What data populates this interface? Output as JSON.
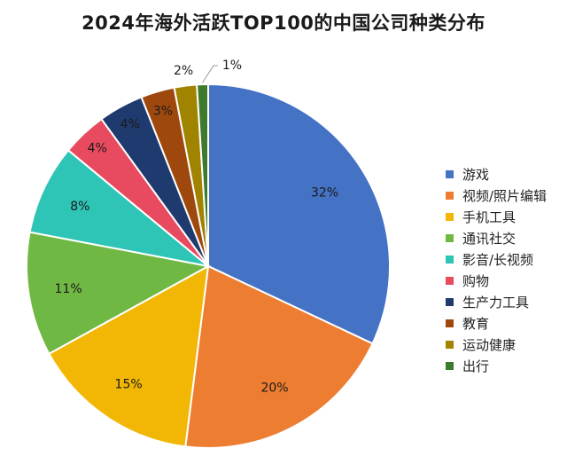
{
  "chart_data": {
    "type": "pie",
    "title": "2024年海外活跃TOP100的中国公司种类分布",
    "legend_position": "right",
    "slices": [
      {
        "label": "游戏",
        "value": 32,
        "value_label": "32%",
        "color": "#4472C4"
      },
      {
        "label": "视频/照片编辑",
        "value": 20,
        "value_label": "20%",
        "color": "#ED7D31"
      },
      {
        "label": "手机工具",
        "value": 15,
        "value_label": "15%",
        "color": "#F2B705"
      },
      {
        "label": "通讯社交",
        "value": 11,
        "value_label": "11%",
        "color": "#70B844"
      },
      {
        "label": "影音/长视频",
        "value": 8,
        "value_label": "8%",
        "color": "#2EC4B6"
      },
      {
        "label": "购物",
        "value": 4,
        "value_label": "4%",
        "color": "#E84A5F"
      },
      {
        "label": "生产力工具",
        "value": 4,
        "value_label": "4%",
        "color": "#1F3A6E"
      },
      {
        "label": "教育",
        "value": 3,
        "value_label": "3%",
        "color": "#9E480E"
      },
      {
        "label": "运动健康",
        "value": 2,
        "value_label": "2%",
        "color": "#A08400"
      },
      {
        "label": "出行",
        "value": 1,
        "value_label": "1%",
        "color": "#3E7A2E"
      }
    ]
  }
}
